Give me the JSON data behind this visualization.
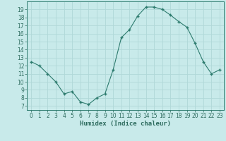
{
  "x": [
    0,
    1,
    2,
    3,
    4,
    5,
    6,
    7,
    8,
    9,
    10,
    11,
    12,
    13,
    14,
    15,
    16,
    17,
    18,
    19,
    20,
    21,
    22,
    23
  ],
  "y": [
    12.5,
    12.0,
    11.0,
    10.0,
    8.5,
    8.8,
    7.5,
    7.2,
    8.0,
    8.5,
    11.5,
    15.5,
    16.5,
    18.2,
    19.3,
    19.3,
    19.0,
    18.3,
    17.5,
    16.8,
    14.8,
    12.5,
    11.0,
    11.5
  ],
  "xlabel": "Humidex (Indice chaleur)",
  "xlim": [
    -0.5,
    23.5
  ],
  "ylim": [
    6.5,
    20
  ],
  "yticks": [
    7,
    8,
    9,
    10,
    11,
    12,
    13,
    14,
    15,
    16,
    17,
    18,
    19
  ],
  "xticks": [
    0,
    1,
    2,
    3,
    4,
    5,
    6,
    7,
    8,
    9,
    10,
    11,
    12,
    13,
    14,
    15,
    16,
    17,
    18,
    19,
    20,
    21,
    22,
    23
  ],
  "line_color": "#2d7b6e",
  "marker_color": "#2d7b6e",
  "bg_color": "#c8eaea",
  "grid_color": "#b0d8d8",
  "label_fontsize": 6.5,
  "tick_fontsize": 5.5
}
